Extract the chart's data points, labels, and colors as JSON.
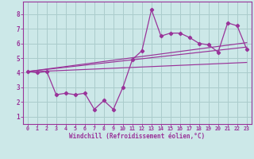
{
  "title": "",
  "xlabel": "Windchill (Refroidissement éolien,°C)",
  "bg_color": "#cce8e8",
  "grid_color": "#aacccc",
  "line_color": "#993399",
  "spine_color": "#993399",
  "xlim": [
    -0.5,
    23.5
  ],
  "ylim": [
    0.5,
    8.85
  ],
  "xticks": [
    0,
    1,
    2,
    3,
    4,
    5,
    6,
    7,
    8,
    9,
    10,
    11,
    12,
    13,
    14,
    15,
    16,
    17,
    18,
    19,
    20,
    21,
    22,
    23
  ],
  "yticks": [
    1,
    2,
    3,
    4,
    5,
    6,
    7,
    8
  ],
  "data_x": [
    0,
    1,
    2,
    3,
    4,
    5,
    6,
    7,
    8,
    9,
    10,
    11,
    12,
    13,
    14,
    15,
    16,
    17,
    18,
    19,
    20,
    21,
    22,
    23
  ],
  "data_y": [
    4.1,
    4.0,
    4.1,
    2.5,
    2.6,
    2.5,
    2.6,
    1.5,
    2.1,
    1.5,
    3.0,
    4.9,
    5.5,
    8.3,
    6.5,
    6.7,
    6.7,
    6.4,
    6.0,
    5.9,
    5.4,
    7.4,
    7.2,
    5.6
  ],
  "trend1_x": [
    0,
    23
  ],
  "trend1_y": [
    4.08,
    5.75
  ],
  "trend2_x": [
    0,
    23
  ],
  "trend2_y": [
    4.05,
    4.7
  ],
  "trend3_x": [
    0,
    23
  ],
  "trend3_y": [
    4.08,
    6.05
  ]
}
